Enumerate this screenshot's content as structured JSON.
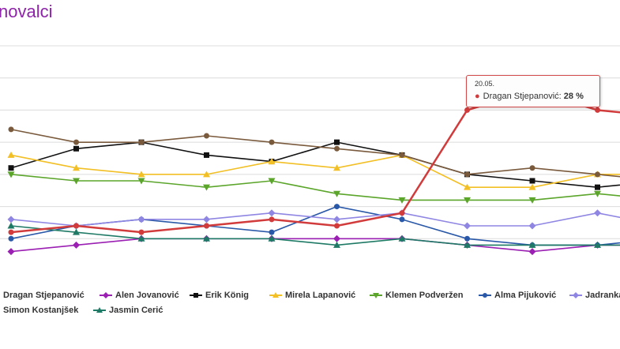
{
  "page": {
    "title": "novalci"
  },
  "chart_data": {
    "type": "line",
    "title": "novalci",
    "x": [
      "",
      "",
      "",
      "",
      "",
      "",
      "",
      "",
      "",
      "",
      ""
    ],
    "ylim": [
      0,
      35
    ],
    "grid": true,
    "legend_position": "bottom",
    "series": [
      {
        "name": "Dragan Stjepanović",
        "color": "#d23b3b",
        "marker": "circle",
        "values": [
          6,
          7,
          6,
          7,
          8,
          7,
          9,
          25,
          28,
          25,
          24
        ]
      },
      {
        "name": "Alen Jovanović",
        "color": "#9a1fb2",
        "marker": "diamond",
        "values": [
          3,
          4,
          5,
          5,
          5,
          5,
          5,
          4,
          3,
          4,
          4
        ]
      },
      {
        "name": "Erik König",
        "color": "#111111",
        "marker": "square",
        "values": [
          16,
          19,
          20,
          18,
          17,
          20,
          18,
          15,
          14,
          13,
          14
        ]
      },
      {
        "name": "Mirela Lapanović",
        "color": "#f2bf24",
        "marker": "triangle",
        "values": [
          18,
          16,
          15,
          15,
          17,
          16,
          18,
          13,
          13,
          15,
          15
        ]
      },
      {
        "name": "Klemen Podveržen",
        "color": "#5aa52a",
        "marker": "triangle-down",
        "values": [
          15,
          14,
          14,
          13,
          14,
          12,
          11,
          11,
          11,
          12,
          11
        ]
      },
      {
        "name": "Alma Pijuković",
        "color": "#2a58a8",
        "marker": "circle",
        "values": [
          5,
          7,
          8,
          7,
          6,
          10,
          8,
          5,
          4,
          4,
          5
        ]
      },
      {
        "name": "Jadranka",
        "color": "#8f86e3",
        "marker": "diamond",
        "values": [
          8,
          7,
          8,
          8,
          9,
          8,
          9,
          7,
          7,
          9,
          7
        ]
      },
      {
        "name": "Simon Kostanjšek",
        "color": "#7a5a3c",
        "marker": "circle",
        "values": [
          22,
          20,
          20,
          21,
          20,
          19,
          18,
          15,
          16,
          15,
          14
        ]
      },
      {
        "name": "Jasmin Cerić",
        "color": "#1e7a65",
        "marker": "triangle",
        "values": [
          7,
          6,
          5,
          5,
          5,
          4,
          5,
          4,
          4,
          4,
          4
        ]
      }
    ],
    "tooltip": {
      "date": "20.05.",
      "series": "Dragan Stjepanović",
      "value_label": "28 %"
    }
  },
  "legend": {
    "row1": [
      "Dragan Stjepanović",
      "Alen Jovanović",
      "Erik König",
      "Mirela Lapanović",
      "Klemen Podveržen",
      "Alma Pijuković",
      "Jadranka"
    ],
    "row2": [
      "Simon Kostanjšek",
      "Jasmin Cerić"
    ]
  },
  "tooltip_box": {
    "date": "20.05.",
    "name": "Dragan Stjepanović:",
    "value": "28 %"
  }
}
